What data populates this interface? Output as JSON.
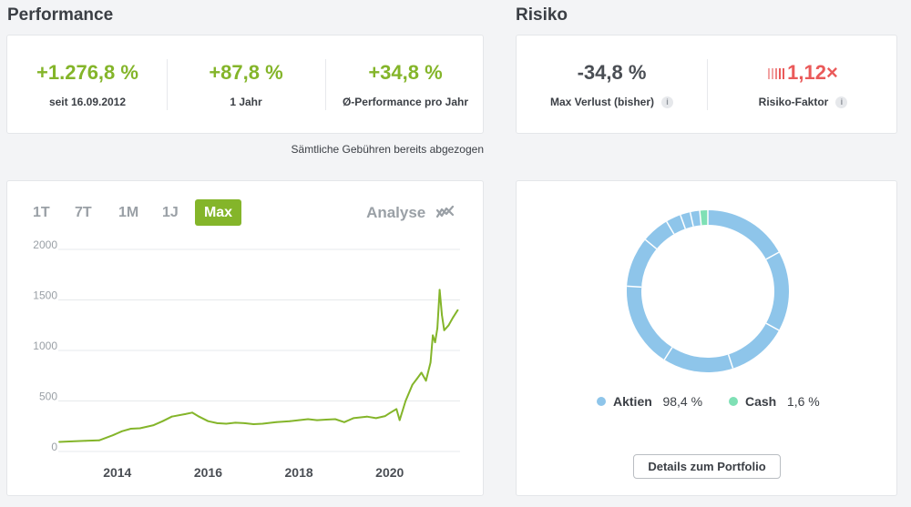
{
  "performance": {
    "title": "Performance",
    "stats": [
      {
        "value": "+1.276,8 %",
        "label": "seit 16.09.2012"
      },
      {
        "value": "+87,8 %",
        "label": "1 Jahr"
      },
      {
        "value": "+34,8 %",
        "label": "Ø-Performance pro Jahr"
      }
    ],
    "fee_note": "Sämtliche Gebühren bereits abgezogen"
  },
  "risk": {
    "title": "Risiko",
    "max_loss": {
      "value": "-34,8 %",
      "label": "Max Verlust (bisher)",
      "info": "i"
    },
    "risk_factor": {
      "value": "1,12×",
      "label": "Risiko-Faktor",
      "info": "i"
    }
  },
  "chart_controls": {
    "ranges": [
      "1T",
      "7T",
      "1M",
      "1J",
      "Max"
    ],
    "active_range": "Max",
    "analyse_label": "Analyse"
  },
  "chart_data": {
    "type": "line",
    "y_ticks": [
      "2000",
      "1500",
      "1000",
      "500",
      "0"
    ],
    "x_ticks": [
      "2014",
      "2016",
      "2018",
      "2020"
    ],
    "ylim": [
      0,
      2000
    ],
    "xlim": [
      2012.7,
      2021.55
    ],
    "grid": true,
    "color": "#84b52a",
    "series": [
      {
        "x": [
          2012.72,
          2013.0,
          2013.3,
          2013.6,
          2013.9,
          2014.1,
          2014.3,
          2014.5,
          2014.8,
          2015.0,
          2015.2,
          2015.5,
          2015.65,
          2015.8,
          2016.0,
          2016.2,
          2016.4,
          2016.6,
          2016.8,
          2017.0,
          2017.2,
          2017.5,
          2017.8,
          2018.0,
          2018.2,
          2018.4,
          2018.6,
          2018.8,
          2019.0,
          2019.2,
          2019.5,
          2019.7,
          2019.9,
          2020.0,
          2020.15,
          2020.22,
          2020.35,
          2020.5,
          2020.6,
          2020.7,
          2020.8,
          2020.9,
          2020.95,
          2021.0,
          2021.05,
          2021.1,
          2021.15,
          2021.2,
          2021.3,
          2021.4,
          2021.5
        ],
        "y": [
          95,
          100,
          105,
          110,
          160,
          200,
          225,
          230,
          260,
          300,
          345,
          370,
          385,
          345,
          300,
          280,
          275,
          285,
          280,
          270,
          275,
          290,
          300,
          310,
          320,
          310,
          315,
          320,
          290,
          330,
          345,
          330,
          350,
          380,
          420,
          310,
          500,
          660,
          720,
          780,
          700,
          880,
          1150,
          1080,
          1220,
          1600,
          1350,
          1200,
          1250,
          1330,
          1400
        ]
      }
    ]
  },
  "allocation": {
    "chart_data": {
      "type": "pie",
      "slices": [
        {
          "label": "Aktien",
          "value": 98.4,
          "color": "#8ec5ea"
        },
        {
          "label": "Cash",
          "value": 1.6,
          "color": "#7fe0b5"
        }
      ]
    },
    "legend": [
      {
        "label": "Aktien",
        "value": "98,4 %"
      },
      {
        "label": "Cash",
        "value": "1,6 %"
      }
    ],
    "details_button": "Details zum Portfolio"
  }
}
